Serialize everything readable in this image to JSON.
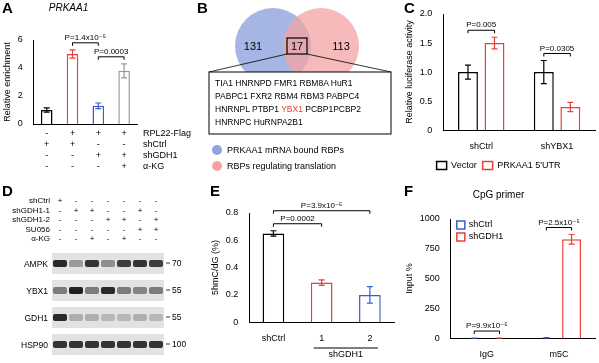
{
  "chart_data": [
    {
      "panel": "A",
      "type": "bar",
      "title": "PRKAA1",
      "ylabel": "Relative enrichment",
      "categories": [
        null,
        null,
        null,
        null
      ],
      "values": [
        1.0,
        5.0,
        1.3,
        3.8
      ],
      "errors": [
        0.15,
        0.3,
        0.2,
        0.5
      ],
      "colors": [
        "#000000",
        "#e8403a",
        "#3a5fcd",
        "#999999"
      ],
      "ylim": [
        0,
        6
      ],
      "yticks": [
        0,
        2,
        4,
        6
      ],
      "grid": false,
      "tick_labels": "y",
      "conditions": [
        {
          "label": "RPL22-Flag",
          "values": [
            "-",
            "+",
            "+",
            "+"
          ]
        },
        {
          "label": "shCtrl",
          "values": [
            "+",
            "+",
            "-",
            "-"
          ]
        },
        {
          "label": "shGDH1",
          "values": [
            "-",
            "-",
            "+",
            "+"
          ]
        },
        {
          "label": "α-KG",
          "values": [
            "-",
            "-",
            "-",
            "+"
          ]
        }
      ],
      "annotations": [
        {
          "text": "P=0.0003",
          "from": 2,
          "to": 3
        },
        {
          "text": "P=1.4x10⁻⁵",
          "from": 1,
          "to": 2
        }
      ]
    },
    {
      "panel": "C",
      "type": "bar",
      "ylabel": "Relative luciferase activity",
      "categories": [
        "shCtrl",
        "shYBX1"
      ],
      "series": [
        {
          "name": "Vector",
          "color": "#000000",
          "values": [
            1.0,
            1.0
          ],
          "errors": [
            0.12,
            0.2
          ]
        },
        {
          "name": "PRKAA1 5'UTR",
          "color": "#e8403a",
          "values": [
            1.5,
            0.4
          ],
          "errors": [
            0.1,
            0.08
          ]
        }
      ],
      "ylim": [
        0,
        2
      ],
      "yticks": [
        0,
        0.5,
        {
          "value": 1,
          "label": "1.0"
        },
        1.5,
        {
          "value": 2,
          "label": "2.0"
        }
      ],
      "grid": false,
      "legend": "bottom",
      "annotations": [
        {
          "text": "P=0.005",
          "category": 0
        },
        {
          "text": "P=0.0305",
          "category": 1
        }
      ]
    },
    {
      "panel": "E",
      "type": "bar",
      "ylabel": "5hmC/dG (%)",
      "categories": [
        "shCtrl",
        "1",
        "2"
      ],
      "values": [
        0.65,
        0.29,
        0.2
      ],
      "errors": [
        0.02,
        0.02,
        0.06
      ],
      "colors": [
        "#000000",
        "#e8403a",
        "#3a5fcd"
      ],
      "ylim": [
        0,
        0.8
      ],
      "yticks": [
        0,
        0.2,
        0.4,
        0.6,
        0.8
      ],
      "grid": false,
      "x_groups": [
        {
          "label": "shGDH1",
          "from": 1,
          "to": 2
        }
      ],
      "annotations": [
        {
          "text": "P=0.0002",
          "from": 0,
          "to": 1
        },
        {
          "text": "P=3.9x10⁻⁵",
          "from": 0,
          "to": 2
        }
      ]
    },
    {
      "panel": "F",
      "type": "bar",
      "title": "CpG primer",
      "ylabel": "Input %",
      "categories": [
        "IgG",
        "m5C"
      ],
      "series": [
        {
          "name": "shCtrl",
          "color": "#3a5fcd",
          "values": [
            0.6,
            3
          ],
          "errors": [
            0.2,
            1
          ]
        },
        {
          "name": "shGDH1",
          "color": "#e8403a",
          "values": [
            1.2,
            830
          ],
          "errors": [
            0.3,
            40
          ]
        }
      ],
      "ylim": [
        0,
        1000
      ],
      "yticks": [
        0,
        250,
        500,
        750,
        1000
      ],
      "grid": false,
      "legend": "top-left",
      "annotations": [
        {
          "text": "P=9.9x10⁻⁵",
          "category": 0
        },
        {
          "text": "P=2.5x10⁻⁵",
          "category": 1
        }
      ]
    }
  ],
  "venn": {
    "panel": "B",
    "left": {
      "count": 131,
      "label": "PRKAA1 mRNA bound RBPs",
      "color": "#8ea2dd"
    },
    "right": {
      "count": 113,
      "label": "RBPs regulating translation",
      "color": "#f3a3a3"
    },
    "overlap": 17,
    "genes": [
      [
        "TIA1",
        "HNRNPD",
        "FMR1",
        "RBM8A",
        "HuR1"
      ],
      [
        "PABPC1",
        "FXR2",
        "RBM4",
        "RBM3",
        "PABPC4"
      ],
      [
        "HNRNPL",
        "PTBP1",
        {
          "name": "YBX1",
          "color": "#e8403a"
        },
        "PCBP1PCBP2"
      ],
      [
        "HNRNPC",
        "HuRNPA2B1"
      ]
    ]
  },
  "blot": {
    "panel": "D",
    "conditions": [
      {
        "label": "shCtrl",
        "values": [
          "+",
          "-",
          "-",
          "-",
          "-",
          "-",
          "-"
        ]
      },
      {
        "label": "shGDH1-1",
        "values": [
          "-",
          "+",
          "+",
          "-",
          "-",
          "+",
          "-"
        ]
      },
      {
        "label": "shGDH1-2",
        "values": [
          "-",
          "-",
          "-",
          "+",
          "+",
          "-",
          "+"
        ]
      },
      {
        "label": "SU056",
        "values": [
          "-",
          "-",
          "-",
          "-",
          "-",
          "+",
          "+"
        ]
      },
      {
        "label": "α-KG",
        "values": [
          "-",
          "-",
          "+",
          "-",
          "+",
          "-",
          "-"
        ]
      }
    ],
    "bands": [
      {
        "label": "AMPK",
        "mw": 70,
        "intensity": [
          0.9,
          0.35,
          0.85,
          0.4,
          0.8,
          0.85,
          0.8
        ]
      },
      {
        "label": "YBX1",
        "mw": 55,
        "intensity": [
          0.5,
          0.95,
          0.5,
          0.9,
          0.5,
          0.45,
          0.5
        ]
      },
      {
        "label": "GDH1",
        "mw": 55,
        "intensity": [
          0.9,
          0.25,
          0.25,
          0.2,
          0.2,
          0.25,
          0.2
        ]
      },
      {
        "label": "HSP90",
        "mw": 100,
        "intensity": [
          0.85,
          0.85,
          0.85,
          0.85,
          0.85,
          0.85,
          0.85
        ]
      }
    ]
  }
}
